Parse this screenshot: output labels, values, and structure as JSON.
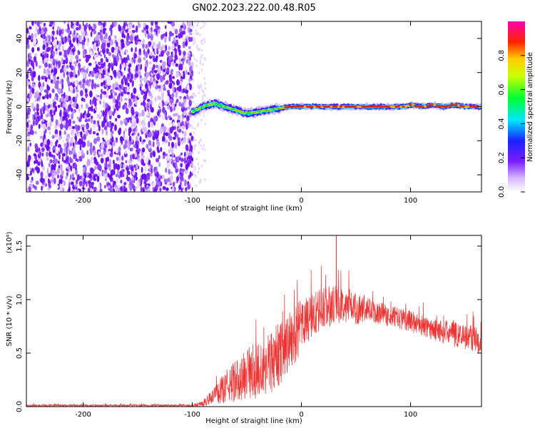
{
  "figure": {
    "title": "GN02.2023.222.00.48.R05"
  },
  "colors": {
    "snr_line": "#ee3333",
    "frame": "#000000",
    "background": "#ffffff"
  },
  "chart_data": [
    {
      "type": "heatmap",
      "xlabel": "Height of straight line (km)",
      "ylabel": "Frequency (Hz)",
      "xlim": [
        -252,
        165
      ],
      "ylim": [
        -50,
        50
      ],
      "x_ticks": [
        -200,
        -100,
        0,
        100
      ],
      "x_tick_labels": [
        "-200",
        "-100",
        "0",
        "100"
      ],
      "y_ticks": [
        -40,
        -20,
        0,
        20,
        40
      ],
      "y_tick_labels": [
        "-40",
        "-20",
        "0",
        "20",
        "40"
      ],
      "colorbar": {
        "label": "Normalized spectral amplitude",
        "range": [
          0,
          1
        ],
        "ticks": [
          0.0,
          0.2,
          0.4,
          0.6,
          0.8
        ],
        "tick_labels": [
          "0.0",
          "0.2",
          "0.4",
          "0.6",
          "0.8"
        ]
      },
      "noise_region_x": [
        -252,
        -100
      ],
      "carrier_track": {
        "x": [
          -100,
          -90,
          -80,
          -70,
          -60,
          -50,
          -40,
          -30,
          -20,
          -10,
          0,
          20,
          40,
          60,
          80,
          95,
          100,
          110,
          120,
          130,
          140,
          150,
          160,
          165
        ],
        "frequency": [
          -3,
          0,
          2,
          0,
          -2,
          -4,
          -3,
          -2,
          -1,
          0,
          0,
          0,
          0,
          0,
          0,
          0,
          1,
          0,
          1,
          0,
          1,
          0,
          0,
          0
        ]
      }
    },
    {
      "type": "line",
      "xlabel": "Height of straight line (km)",
      "ylabel": "SNR (10 * v/v)",
      "y_multiplier": "(x10⁴)",
      "xlim": [
        -252,
        165
      ],
      "ylim": [
        0,
        1.6
      ],
      "x_ticks": [
        -200,
        -100,
        0,
        100
      ],
      "x_tick_labels": [
        "-200",
        "-100",
        "0",
        "100"
      ],
      "y_ticks": [
        0.0,
        0.5,
        1.0,
        1.5
      ],
      "y_tick_labels": [
        "0.0",
        "0.5",
        "1.0",
        "1.5"
      ],
      "series": [
        {
          "envelope": {
            "x": [
              -252,
              -100,
              -90,
              -80,
              -70,
              -60,
              -50,
              -40,
              -30,
              -20,
              -10,
              0,
              10,
              20,
              30,
              40,
              50,
              60,
              80,
              100,
              120,
              140,
              160,
              165
            ],
            "mean": [
              0.01,
              0.01,
              0.03,
              0.1,
              0.18,
              0.24,
              0.3,
              0.34,
              0.4,
              0.5,
              0.62,
              0.75,
              0.85,
              0.92,
              0.95,
              0.95,
              0.92,
              0.9,
              0.85,
              0.8,
              0.72,
              0.68,
              0.63,
              0.6
            ],
            "spread": [
              0.01,
              0.01,
              0.03,
              0.08,
              0.15,
              0.2,
              0.25,
              0.27,
              0.3,
              0.3,
              0.28,
              0.25,
              0.22,
              0.2,
              0.18,
              0.16,
              0.15,
              0.12,
              0.1,
              0.1,
              0.1,
              0.12,
              0.12,
              0.12
            ]
          },
          "peak": {
            "x": 32,
            "y": 1.6
          }
        }
      ]
    }
  ]
}
